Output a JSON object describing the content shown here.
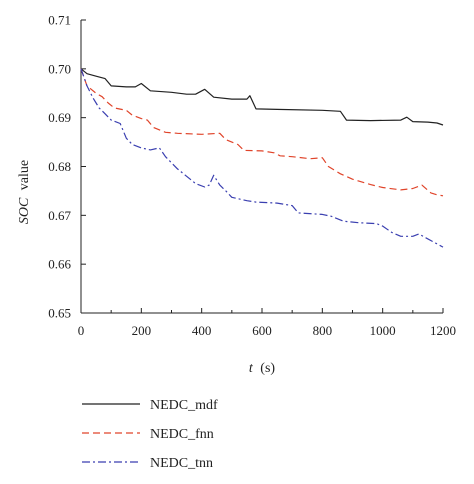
{
  "chart_data": {
    "type": "line",
    "xlabel_var": "t",
    "xlabel_unit": "(s)",
    "ylabel_var": "SOC",
    "ylabel_rest": "value",
    "xlim": [
      0,
      1200
    ],
    "ylim": [
      0.65,
      0.71
    ],
    "x_ticks": [
      "0",
      "200",
      "400",
      "600",
      "800",
      "1000",
      "1200"
    ],
    "y_ticks": [
      "0.65",
      "0.66",
      "0.67",
      "0.68",
      "0.69",
      "0.70",
      "0.71"
    ],
    "grid": false,
    "legend_position": "bottom-left",
    "series": [
      {
        "name": "NEDC_mdf",
        "color": "#222222",
        "style": "solid",
        "points": [
          [
            0,
            0.7
          ],
          [
            20,
            0.699
          ],
          [
            50,
            0.6985
          ],
          [
            80,
            0.698
          ],
          [
            100,
            0.6965
          ],
          [
            150,
            0.6963
          ],
          [
            180,
            0.6963
          ],
          [
            200,
            0.697
          ],
          [
            230,
            0.6955
          ],
          [
            300,
            0.6952
          ],
          [
            350,
            0.6948
          ],
          [
            380,
            0.6948
          ],
          [
            410,
            0.6958
          ],
          [
            440,
            0.6942
          ],
          [
            500,
            0.6938
          ],
          [
            550,
            0.6938
          ],
          [
            560,
            0.6945
          ],
          [
            580,
            0.6918
          ],
          [
            650,
            0.6917
          ],
          [
            800,
            0.6915
          ],
          [
            860,
            0.6913
          ],
          [
            880,
            0.6895
          ],
          [
            960,
            0.6894
          ],
          [
            1060,
            0.6895
          ],
          [
            1080,
            0.6901
          ],
          [
            1100,
            0.6892
          ],
          [
            1150,
            0.6891
          ],
          [
            1180,
            0.6889
          ],
          [
            1200,
            0.6885
          ]
        ]
      },
      {
        "name": "NEDC_fnn",
        "color": "#e0442a",
        "style": "dashed",
        "points": [
          [
            0,
            0.7
          ],
          [
            20,
            0.6965
          ],
          [
            50,
            0.695
          ],
          [
            70,
            0.6943
          ],
          [
            90,
            0.693
          ],
          [
            110,
            0.692
          ],
          [
            150,
            0.6915
          ],
          [
            170,
            0.6905
          ],
          [
            200,
            0.6898
          ],
          [
            220,
            0.6895
          ],
          [
            240,
            0.688
          ],
          [
            280,
            0.687
          ],
          [
            320,
            0.6868
          ],
          [
            400,
            0.6866
          ],
          [
            460,
            0.6868
          ],
          [
            480,
            0.6855
          ],
          [
            520,
            0.6845
          ],
          [
            540,
            0.6833
          ],
          [
            600,
            0.6832
          ],
          [
            640,
            0.6828
          ],
          [
            660,
            0.6822
          ],
          [
            700,
            0.682
          ],
          [
            760,
            0.6816
          ],
          [
            800,
            0.6818
          ],
          [
            820,
            0.68
          ],
          [
            860,
            0.6785
          ],
          [
            900,
            0.6774
          ],
          [
            960,
            0.6763
          ],
          [
            1000,
            0.6757
          ],
          [
            1060,
            0.6752
          ],
          [
            1100,
            0.6755
          ],
          [
            1130,
            0.6762
          ],
          [
            1160,
            0.6746
          ],
          [
            1180,
            0.6742
          ],
          [
            1200,
            0.674
          ]
        ]
      },
      {
        "name": "NEDC_tnn",
        "color": "#3a3fb0",
        "style": "dashdot",
        "points": [
          [
            0,
            0.7
          ],
          [
            20,
            0.6965
          ],
          [
            40,
            0.694
          ],
          [
            60,
            0.692
          ],
          [
            80,
            0.6908
          ],
          [
            100,
            0.6895
          ],
          [
            130,
            0.6888
          ],
          [
            150,
            0.6858
          ],
          [
            170,
            0.6845
          ],
          [
            200,
            0.6838
          ],
          [
            230,
            0.6834
          ],
          [
            260,
            0.6838
          ],
          [
            280,
            0.682
          ],
          [
            320,
            0.6795
          ],
          [
            360,
            0.6775
          ],
          [
            380,
            0.6765
          ],
          [
            410,
            0.6758
          ],
          [
            425,
            0.6762
          ],
          [
            440,
            0.6782
          ],
          [
            460,
            0.6762
          ],
          [
            480,
            0.675
          ],
          [
            500,
            0.6737
          ],
          [
            550,
            0.673
          ],
          [
            580,
            0.6727
          ],
          [
            650,
            0.6725
          ],
          [
            700,
            0.672
          ],
          [
            720,
            0.6705
          ],
          [
            800,
            0.6702
          ],
          [
            830,
            0.6698
          ],
          [
            870,
            0.6688
          ],
          [
            920,
            0.6685
          ],
          [
            980,
            0.6683
          ],
          [
            1000,
            0.6678
          ],
          [
            1030,
            0.6665
          ],
          [
            1060,
            0.6657
          ],
          [
            1100,
            0.6657
          ],
          [
            1120,
            0.6662
          ],
          [
            1140,
            0.6655
          ],
          [
            1170,
            0.6645
          ],
          [
            1200,
            0.6635
          ]
        ]
      }
    ]
  }
}
